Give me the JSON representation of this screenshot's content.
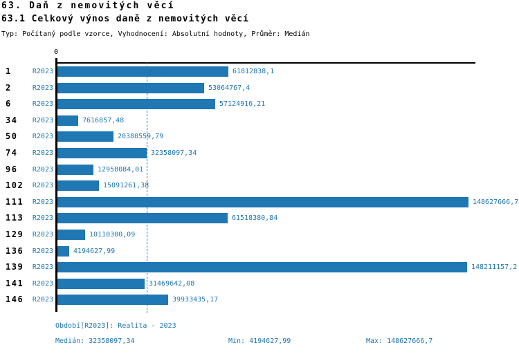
{
  "page": {
    "title": "63. Daň z nemovitých věcí",
    "subtitle": "63.1 Celkový výnos daně z nemovitých věcí",
    "meta": "Typ: Počítaný podle vzorce, Vyhodnocení: Absolutní hodnoty, Průměr: Medián"
  },
  "chart_data": {
    "type": "bar",
    "orientation": "horizontal",
    "title": "63.1 Celkový výnos daně z nemovitých věcí",
    "axis_zero_label": "0",
    "period_label": "R2023",
    "categories": [
      "1",
      "2",
      "6",
      "34",
      "50",
      "74",
      "96",
      "102",
      "111",
      "113",
      "129",
      "136",
      "139",
      "141",
      "146"
    ],
    "values": [
      61812838.1,
      53064767.4,
      57124916.21,
      7616857.48,
      20380559.79,
      32358097.34,
      12958084.01,
      15091261.38,
      148627666.7,
      61518380.84,
      10110300.09,
      4194627.99,
      148211157.2,
      31469642.08,
      39933435.17
    ],
    "value_labels": [
      "61812838,1",
      "53064767,4",
      "57124916,21",
      "7616857,48",
      "20380559,79",
      "32358097,34",
      "12958084,01",
      "15091261,38",
      "148627666,7",
      "61518380,84",
      "10110300,09",
      "4194627,99",
      "148211157,2",
      "31469642,08",
      "39933435,17"
    ],
    "xlim": [
      0,
      148627666.7
    ],
    "median_value": 32358097.34,
    "grid": false,
    "legend_position": "none",
    "bar_color": "#1f77b4",
    "median_line_color": "#1f77b4",
    "label_color": "#1f77b4",
    "row_number_color": "#000000"
  },
  "footer": {
    "period": "Období[R2023]: Realita - 2023",
    "median": "Medián: 32358097,34",
    "min": "Min: 4194627,99",
    "max": "Max: 148627666,7"
  }
}
